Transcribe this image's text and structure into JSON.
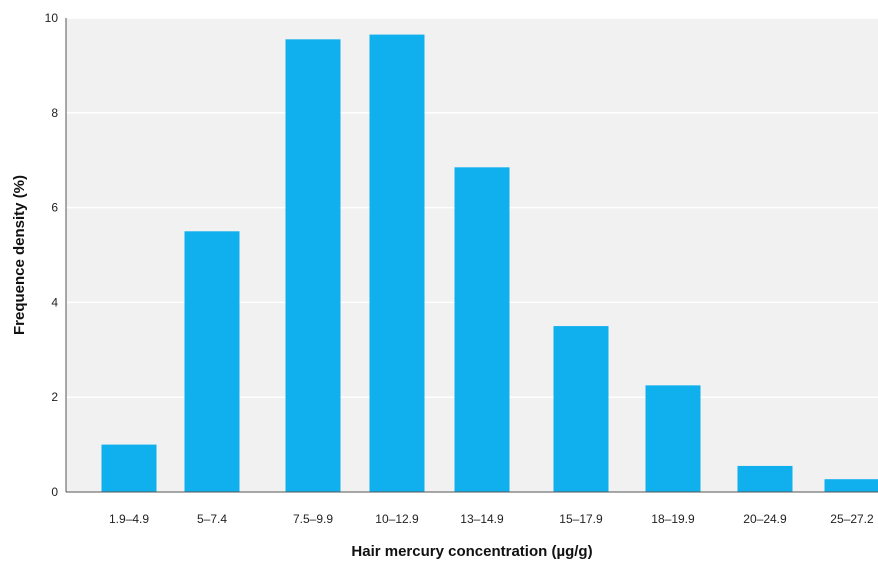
{
  "chart_data": {
    "type": "bar",
    "title": "",
    "xlabel": "Hair mercury concentration (µg/g)",
    "ylabel": "Frequence density (%)",
    "categories": [
      "1.9–4.9",
      "5–7.4",
      "7.5–9.9",
      "10–12.9",
      "13–14.9",
      "15–17.9",
      "18–19.9",
      "20–24.9",
      "25–27.2"
    ],
    "values": [
      1.0,
      5.5,
      9.55,
      9.65,
      6.85,
      3.5,
      2.25,
      0.55,
      0.27
    ],
    "ylim": [
      0,
      10
    ],
    "yticks": [
      0,
      2,
      4,
      6,
      8,
      10
    ],
    "grid": true,
    "plot_bg": "#f1f1f1",
    "grid_color": "#ffffff",
    "bar_color": "#10b0ee"
  }
}
